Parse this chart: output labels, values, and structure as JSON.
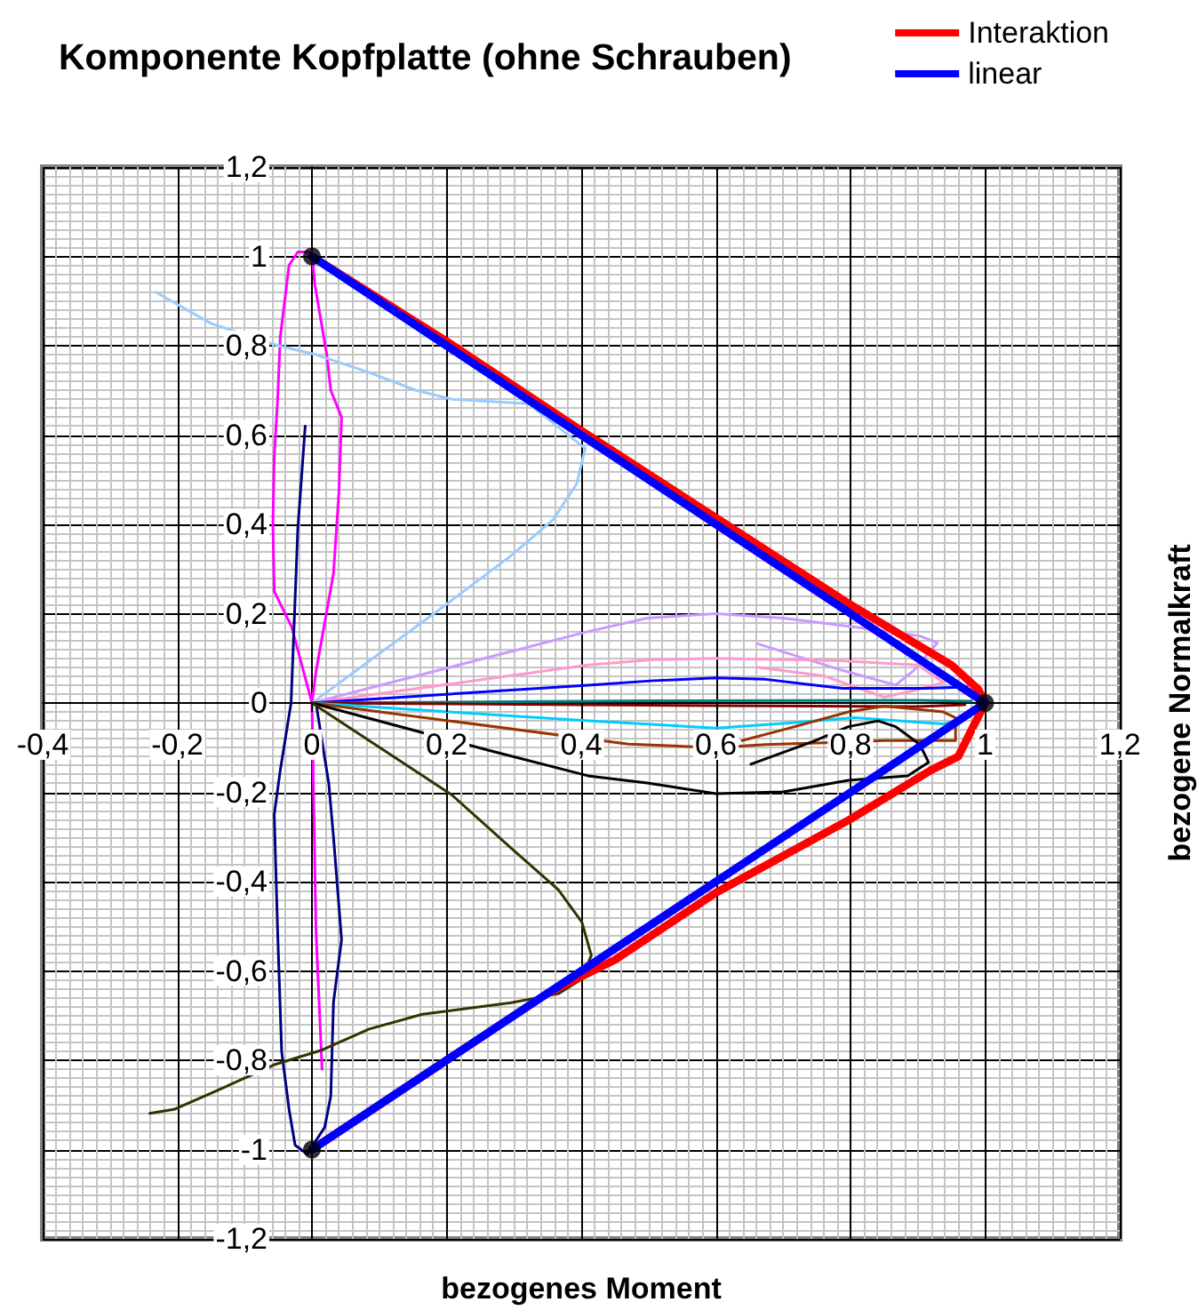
{
  "chart_data": {
    "type": "line",
    "title": "Komponente Kopfplatte (ohne Schrauben)",
    "xlabel": "bezogenes Moment",
    "ylabel": "bezogene Normalkraft",
    "xlim": [
      -0.4,
      1.2
    ],
    "ylim": [
      -1.2,
      1.2
    ],
    "xticks": [
      {
        "value": -0.4,
        "label": "-0,4"
      },
      {
        "value": -0.2,
        "label": "-0,2"
      },
      0,
      {
        "value": 0.2,
        "label": "0,2"
      },
      {
        "value": 0.4,
        "label": "0,4"
      },
      {
        "value": 0.6,
        "label": "0,6"
      },
      {
        "value": 0.8,
        "label": "0,8"
      },
      1,
      {
        "value": 1.2,
        "label": "1,2"
      }
    ],
    "yticks": [
      {
        "value": -1.2,
        "label": "-1,2"
      },
      -1,
      {
        "value": -0.8,
        "label": "-0,8"
      },
      {
        "value": -0.6,
        "label": "-0,6"
      },
      {
        "value": -0.4,
        "label": "-0,4"
      },
      {
        "value": -0.2,
        "label": "-0,2"
      },
      0,
      {
        "value": 0.2,
        "label": "0,2"
      },
      {
        "value": 0.4,
        "label": "0,4"
      },
      {
        "value": 0.6,
        "label": "0,6"
      },
      {
        "value": 0.8,
        "label": "0,8"
      },
      1,
      {
        "value": 1.2,
        "label": "1,2"
      }
    ],
    "grid": true,
    "legend": "top right",
    "marker": "none",
    "series": [
      {
        "color": "#ff00ff",
        "x": [
          0.015,
          0.006,
          0,
          -0.03,
          -0.056,
          -0.058,
          -0.056,
          -0.051,
          -0.047,
          -0.034,
          -0.021,
          0,
          0.004,
          0.022,
          0.028,
          0.044,
          0.04,
          0.032,
          0.006,
          0
        ],
        "values": [
          -0.82,
          -0.51,
          0,
          0.17,
          0.25,
          0.4,
          0.55,
          0.68,
          0.82,
          0.98,
          1.01,
          1.01,
          0.94,
          0.78,
          0.7,
          0.64,
          0.47,
          0.29,
          0.07,
          0
        ]
      },
      {
        "color": "#000080",
        "x": [
          -0.01,
          -0.021,
          -0.031,
          -0.047,
          -0.056,
          -0.051,
          -0.045,
          -0.034,
          -0.025,
          -0.007,
          0.019,
          0.028,
          0.032,
          0.044,
          0.032,
          0.025,
          0.006
        ],
        "values": [
          0.62,
          0.39,
          0,
          -0.15,
          -0.25,
          -0.51,
          -0.78,
          -0.91,
          -0.99,
          -1.01,
          -0.95,
          -0.88,
          -0.67,
          -0.53,
          -0.3,
          -0.18,
          0
        ]
      },
      {
        "color": "#99ccff",
        "x": [
          0,
          0.19,
          0.296,
          0.358,
          0.393,
          0.406,
          0.322,
          0.208,
          0.155,
          0.085,
          0.006,
          -0.05,
          -0.15,
          -0.232
        ],
        "values": [
          0,
          0.21,
          0.33,
          0.41,
          0.49,
          0.57,
          0.67,
          0.68,
          0.7,
          0.74,
          0.78,
          0.8,
          0.85,
          0.92
        ]
      },
      {
        "color": "#cc99ff",
        "x": [
          0,
          0.41,
          0.498,
          0.6,
          0.7,
          0.806,
          0.903,
          0.929,
          0.894,
          0.867,
          0.788,
          0.661
        ],
        "values": [
          0,
          0.16,
          0.19,
          0.2,
          0.19,
          0.17,
          0.15,
          0.135,
          0.073,
          0.04,
          0.073,
          0.133
        ]
      },
      {
        "color": "#ff99cc",
        "x": [
          0,
          0.41,
          0.507,
          0.6,
          0.78,
          0.9,
          0.938,
          0.9,
          0.85,
          0.762,
          0.661
        ],
        "values": [
          0,
          0.085,
          0.097,
          0.1,
          0.095,
          0.085,
          0.046,
          0.03,
          0.013,
          0.06,
          0.08
        ]
      },
      {
        "color": "#0000ff",
        "x": [
          0,
          0.41,
          0.507,
          0.6,
          0.674,
          0.736,
          0.788,
          0.912,
          0.973
        ],
        "values": [
          0,
          0.04,
          0.05,
          0.056,
          0.053,
          0.042,
          0.033,
          0.033,
          0.036
        ]
      },
      {
        "color": "#008080",
        "x": [
          0,
          0.5,
          0.9,
          0.98
        ],
        "values": [
          0,
          0.005,
          0.006,
          0.004
        ]
      },
      {
        "color": "#800000",
        "x": [
          0,
          0.5,
          0.9,
          0.97
        ],
        "values": [
          0,
          -0.005,
          -0.008,
          -0.004
        ]
      },
      {
        "color": "#00ccff",
        "x": [
          0,
          0.41,
          0.6,
          0.709,
          0.806,
          0.938,
          0.97
        ],
        "values": [
          0,
          -0.04,
          -0.056,
          -0.045,
          -0.033,
          -0.047,
          -0.035
        ]
      },
      {
        "color": "#993300",
        "x": [
          0,
          0.47,
          0.6,
          0.674,
          0.762,
          0.85,
          0.956,
          0.956,
          0.938,
          0.85,
          0.797,
          0.7,
          0.639
        ],
        "values": [
          0,
          -0.092,
          -0.1,
          -0.093,
          -0.089,
          -0.084,
          -0.084,
          -0.033,
          -0.02,
          -0.007,
          -0.02,
          -0.06,
          -0.084
        ]
      },
      {
        "color": "#000000",
        "x": [
          0,
          0.26,
          0.41,
          0.498,
          0.6,
          0.7,
          0.797,
          0.885,
          0.916,
          0.903,
          0.867,
          0.841,
          0.797,
          0.745,
          0.652
        ],
        "values": [
          0,
          -0.105,
          -0.163,
          -0.179,
          -0.203,
          -0.199,
          -0.173,
          -0.163,
          -0.133,
          -0.093,
          -0.053,
          -0.04,
          -0.053,
          -0.086,
          -0.137
        ]
      },
      {
        "color": "#333300",
        "x": [
          0,
          0.208,
          0.296,
          0.366,
          0.401,
          0.415,
          0.401,
          0.366,
          0.296,
          0.164,
          0.085,
          0.015,
          -0.056,
          -0.144,
          -0.205,
          -0.241
        ],
        "values": [
          0,
          -0.206,
          -0.325,
          -0.418,
          -0.491,
          -0.565,
          -0.618,
          -0.651,
          -0.671,
          -0.697,
          -0.73,
          -0.777,
          -0.81,
          -0.87,
          -0.91,
          -0.919
        ]
      },
      {
        "name": "Interaktion",
        "color": "#ff0000",
        "x": [
          0,
          0.2,
          0.4,
          0.6,
          0.8,
          0.95,
          0.99,
          1,
          0.99,
          0.96,
          0.92,
          0.8,
          0.6,
          0.45,
          0.35,
          0
        ],
        "values": [
          1,
          0.81,
          0.61,
          0.415,
          0.22,
          0.085,
          0.03,
          0,
          -0.03,
          -0.12,
          -0.15,
          -0.26,
          -0.425,
          -0.575,
          -0.65,
          -1
        ]
      },
      {
        "name": "linear",
        "color": "#0000ff",
        "x": [
          0,
          1,
          0
        ],
        "values": [
          1,
          0,
          -1
        ]
      },
      {
        "type": "scatter",
        "marker": "circle",
        "color": "#000000",
        "x": [
          0,
          1,
          0
        ],
        "values": [
          1,
          0,
          -1
        ]
      }
    ]
  }
}
